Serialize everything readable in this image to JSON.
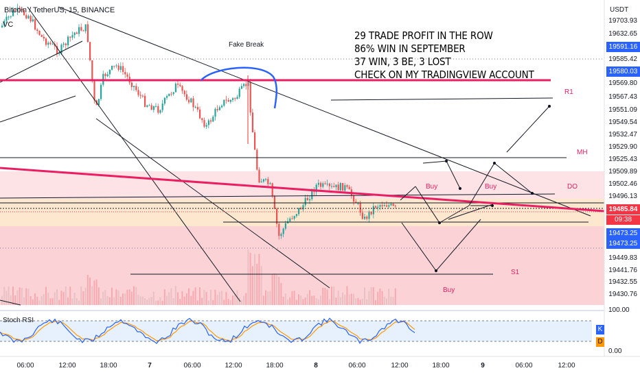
{
  "header": {
    "symbol_title": "Bitcoin / TetherUS, 15, BINANCE",
    "indicator_short": "VC"
  },
  "annotations": {
    "note_lines": [
      "29 TRADE PROFIT IN THE ROW",
      "86% WIN IN SEPTEMBER",
      "37 WIN, 3 BE, 3 LOST",
      "CHECK ON MY TRADINGVIEW  ACCOUNT"
    ],
    "fake_break": "Fake Break",
    "r1": "R1",
    "mh": "MH",
    "do": "DO",
    "s1": "S1",
    "buy": "Buy"
  },
  "price_axis": {
    "unit": "USDT",
    "ticks": [
      "19703.93",
      "19632.65",
      "19591.16",
      "19585.42",
      "19580.03",
      "19569.80",
      "19567.43",
      "19551.09",
      "19549.54",
      "19532.47",
      "19529.90",
      "19525.43",
      "19509.89",
      "19502.46",
      "19496.13",
      "19485.84",
      "19473.25",
      "19473.25",
      "19449.83",
      "19441.76",
      "19432.55",
      "19430.76"
    ],
    "current_price": "19485.84",
    "countdown": "09:38"
  },
  "time_axis": {
    "ticks": [
      "06:00",
      "12:00",
      "18:00",
      "7",
      "06:00",
      "12:00",
      "18:00",
      "8",
      "06:00",
      "12:00",
      "18:00",
      "9",
      "06:00",
      "12:00"
    ]
  },
  "stoch_rsi": {
    "title": "Stoch RSI",
    "upper": "100.00",
    "lower": "0.00",
    "k_label": "K",
    "d_label": "D"
  },
  "colors": {
    "up": "#26a69a",
    "down": "#ef5350",
    "accent": "#e91e63",
    "blue_tag": "#2962ff",
    "k_color": "#2962ff",
    "d_color": "#ff9800"
  }
}
